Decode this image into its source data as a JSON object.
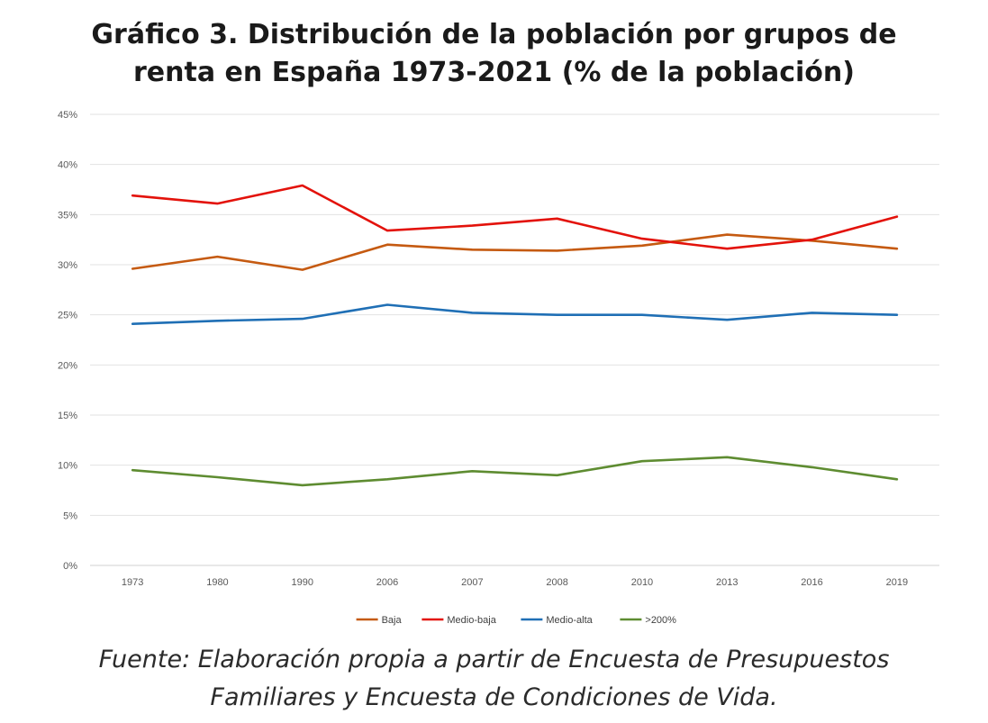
{
  "title": {
    "line1": "Gráfico 3. Distribución de la población por grupos de",
    "line2": "renta en España 1973-2021 (% de la población)"
  },
  "source": {
    "line1": "Fuente: Elaboración propia a partir de Encuesta de Presupuestos",
    "line2": "Familiares y Encuesta de Condiciones de Vida."
  },
  "chart_data": {
    "type": "line",
    "title": "Gráfico 3. Distribución de la población por grupos de renta en España 1973-2021 (% de la población)",
    "xlabel": "",
    "ylabel": "",
    "categories": [
      "1973",
      "1980",
      "1990",
      "2006",
      "2007",
      "2008",
      "2010",
      "2013",
      "2016",
      "2019"
    ],
    "ylim": [
      0,
      45
    ],
    "yticks": [
      0,
      5,
      10,
      15,
      20,
      25,
      30,
      35,
      40,
      45
    ],
    "ytick_labels": [
      "0%",
      "5%",
      "10%",
      "15%",
      "20%",
      "25%",
      "30%",
      "35%",
      "40%",
      "45%"
    ],
    "grid": true,
    "legend_position": "bottom",
    "series": [
      {
        "name": "Baja",
        "color": "#C55A11",
        "values": [
          29.6,
          30.8,
          29.5,
          32.0,
          31.5,
          31.4,
          31.9,
          33.0,
          32.4,
          31.6
        ]
      },
      {
        "name": "Medio-baja",
        "color": "#E3120B",
        "values": [
          36.9,
          36.1,
          37.9,
          33.4,
          33.9,
          34.6,
          32.6,
          31.6,
          32.5,
          34.8
        ]
      },
      {
        "name": "Medio-alta",
        "color": "#1F6FB5",
        "values": [
          24.1,
          24.4,
          24.6,
          26.0,
          25.2,
          25.0,
          25.0,
          24.5,
          25.2,
          25.0
        ]
      },
      {
        "name": ">200%",
        "color": "#5E8C31",
        "values": [
          9.5,
          8.8,
          8.0,
          8.6,
          9.4,
          9.0,
          10.4,
          10.8,
          9.8,
          8.6
        ]
      }
    ]
  }
}
